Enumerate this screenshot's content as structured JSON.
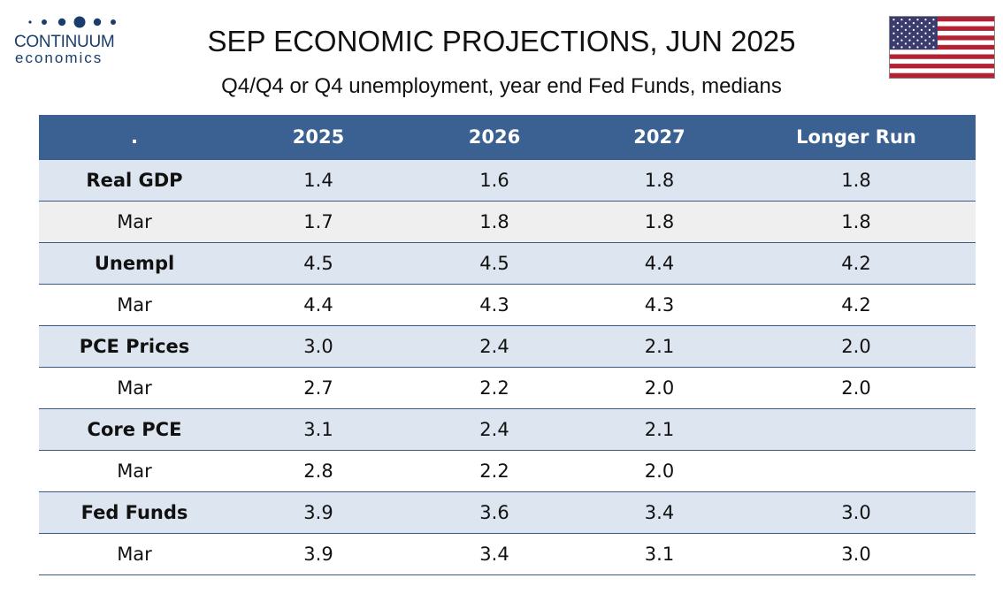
{
  "logo": {
    "name": "CONTINUUM",
    "sub": "economics",
    "color": "#1a3d6b"
  },
  "title": "SEP ECONOMIC PROJECTIONS, JUN 2025",
  "subtitle": "Q4/Q4 or Q4 unemployment, year end Fed Funds, medians",
  "flag_icon": "us-flag-icon",
  "colors": {
    "header_bg": "#3b6193",
    "main_row_bg": "#dde6f0",
    "alt_row_bg": "#efefef"
  },
  "chart_data": {
    "type": "table",
    "columns": [
      ".",
      "2025",
      "2026",
      "2027",
      "Longer Run"
    ],
    "rows": [
      {
        "label": "Real GDP",
        "kind": "main",
        "values": [
          "1.4",
          "1.6",
          "1.8",
          "1.8"
        ]
      },
      {
        "label": "Mar",
        "kind": "sub",
        "values": [
          "1.7",
          "1.8",
          "1.8",
          "1.8"
        ]
      },
      {
        "label": "Unempl",
        "kind": "main",
        "values": [
          "4.5",
          "4.5",
          "4.4",
          "4.2"
        ]
      },
      {
        "label": "Mar",
        "kind": "sub",
        "values": [
          "4.4",
          "4.3",
          "4.3",
          "4.2"
        ]
      },
      {
        "label": "PCE Prices",
        "kind": "main",
        "values": [
          "3.0",
          "2.4",
          "2.1",
          "2.0"
        ]
      },
      {
        "label": "Mar",
        "kind": "sub",
        "values": [
          "2.7",
          "2.2",
          "2.0",
          "2.0"
        ]
      },
      {
        "label": "Core PCE",
        "kind": "main",
        "values": [
          "3.1",
          "2.4",
          "2.1",
          ""
        ]
      },
      {
        "label": "Mar",
        "kind": "sub",
        "values": [
          "2.8",
          "2.2",
          "2.0",
          ""
        ]
      },
      {
        "label": "Fed Funds",
        "kind": "main",
        "values": [
          "3.9",
          "3.6",
          "3.4",
          "3.0"
        ]
      },
      {
        "label": "Mar",
        "kind": "sub",
        "values": [
          "3.9",
          "3.4",
          "3.1",
          "3.0"
        ]
      }
    ]
  }
}
